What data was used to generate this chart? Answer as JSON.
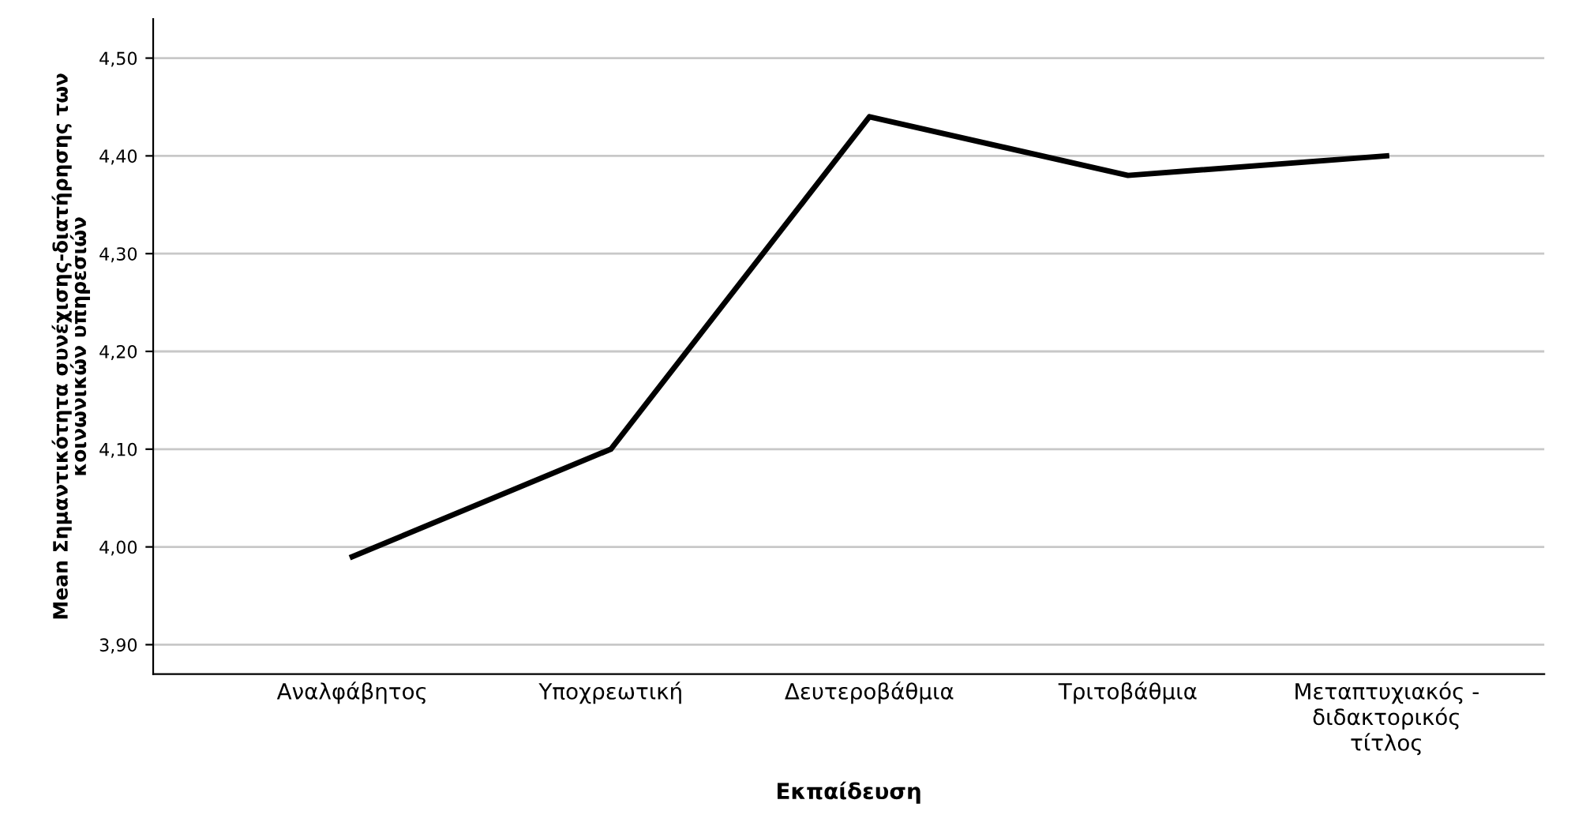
{
  "chart_data": {
    "type": "line",
    "xlabel": "Εκπαίδευση",
    "ylabel": "Mean Σημαντικότητα συνέχισης-διατήρησης των\nκοινωνικών υπηρεσιών",
    "categories": [
      "Αναλφάβητος",
      "Υποχρεωτική",
      "Δευτεροβάθμια",
      "Τριτοβάθμια",
      "Μεταπτυχιακός -\nδιδακτορικός\nτίτλος"
    ],
    "series": [
      {
        "color": "#000000",
        "values": [
          3.99,
          4.1,
          4.44,
          4.38,
          4.4
        ]
      }
    ],
    "ylim": [
      3.87,
      4.54
    ],
    "yticks": [
      {
        "value": 3.9,
        "label": "3,90"
      },
      {
        "value": 4.0,
        "label": "4,00"
      },
      {
        "value": 4.1,
        "label": "4,10"
      },
      {
        "value": 4.2,
        "label": "4,20"
      },
      {
        "value": 4.3,
        "label": "4,30"
      },
      {
        "value": 4.4,
        "label": "4,40"
      },
      {
        "value": 4.5,
        "label": "4,50"
      }
    ],
    "grid": "y",
    "marker": "none",
    "line_style": "solid"
  }
}
